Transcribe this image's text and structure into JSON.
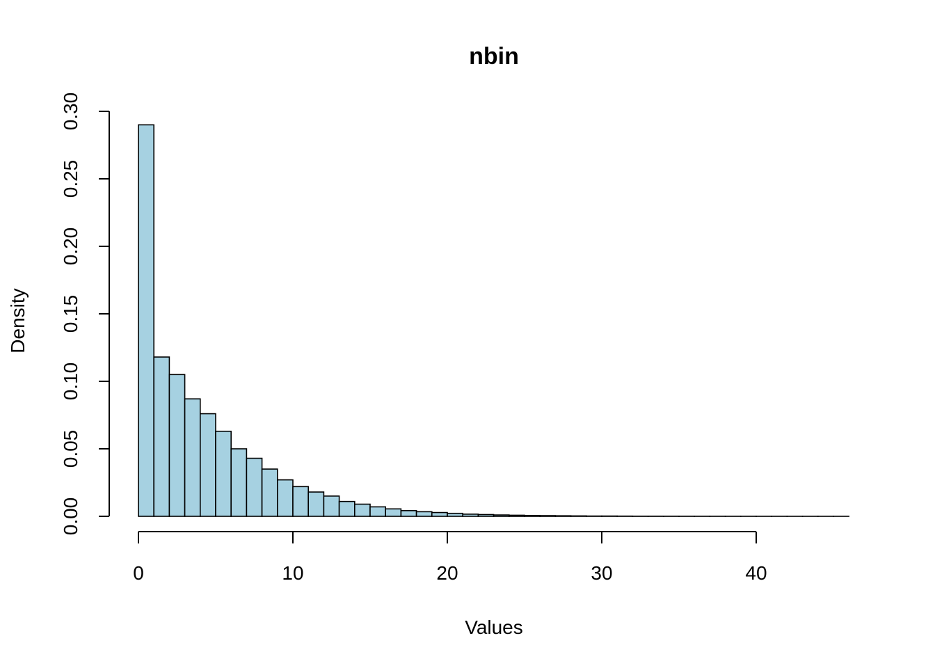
{
  "chart_data": {
    "type": "bar",
    "title": "nbin",
    "xlabel": "Values",
    "ylabel": "Density",
    "bar_color": "#a6d1e1",
    "bin_width": 1,
    "x_start": 0,
    "xlim": [
      0,
      46
    ],
    "ylim": [
      0,
      0.3
    ],
    "x_ticks": [
      0,
      10,
      20,
      30,
      40
    ],
    "x_tick_labels": [
      "0",
      "10",
      "20",
      "30",
      "40"
    ],
    "y_ticks": [
      0,
      0.05,
      0.1,
      0.15,
      0.2,
      0.25,
      0.3
    ],
    "y_tick_labels": [
      "0.00",
      "0.05",
      "0.10",
      "0.15",
      "0.20",
      "0.25",
      "0.30"
    ],
    "grid": false,
    "values": [
      0.29,
      0.118,
      0.105,
      0.087,
      0.076,
      0.063,
      0.05,
      0.043,
      0.035,
      0.027,
      0.022,
      0.018,
      0.015,
      0.011,
      0.009,
      0.007,
      0.0055,
      0.0042,
      0.0034,
      0.0028,
      0.0022,
      0.0016,
      0.0013,
      0.001,
      0.0008,
      0.0006,
      0.0005,
      0.0004,
      0.0003,
      0.0002,
      0.0002,
      0.00015,
      0.0001,
      0.0001,
      8e-05,
      6e-05,
      5e-05,
      4e-05,
      3e-05,
      3e-05,
      2e-05,
      2e-05,
      1e-05,
      1e-05,
      1e-05,
      1e-05
    ]
  }
}
